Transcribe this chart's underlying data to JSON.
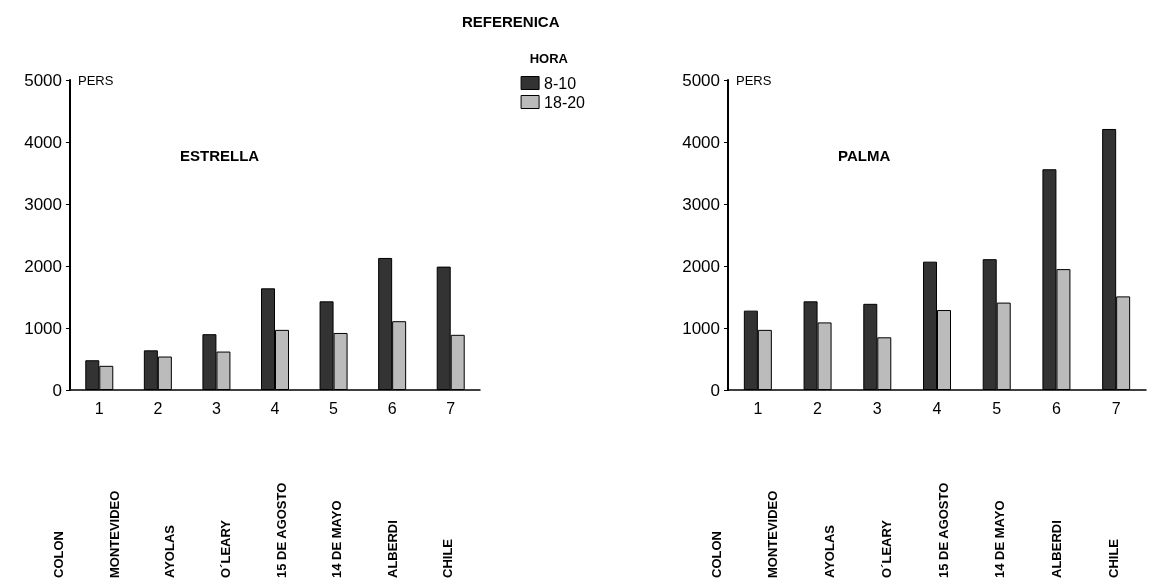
{
  "chart_data": [
    {
      "type": "bar",
      "title": "ESTRELLA",
      "subtitle": "REFERENICA",
      "ylabel": "PERS",
      "legend_title": "HORA",
      "legend": "top right",
      "grid": false,
      "categories": [
        "1",
        "2",
        "3",
        "4",
        "5",
        "6",
        "7"
      ],
      "series": [
        {
          "name": "8-10",
          "color": "#333333",
          "values": [
            480,
            640,
            900,
            1640,
            1430,
            2130,
            1990
          ]
        },
        {
          "name": "18-20",
          "color": "#bbbbbb",
          "values": [
            390,
            540,
            620,
            970,
            920,
            1110,
            890
          ]
        }
      ],
      "ylim": [
        0,
        5000
      ],
      "yticks": [
        0,
        1000,
        2000,
        3000,
        4000,
        5000
      ],
      "annotations": [
        "COLON",
        "MONTEVIDEO",
        "AYOLAS",
        "O´LEARY",
        "15 DE AGOSTO",
        "14 DE MAYO",
        "ALBERDI",
        "CHILE"
      ]
    },
    {
      "type": "bar",
      "title": "PALMA",
      "ylabel": "PERS",
      "grid": false,
      "categories": [
        "1",
        "2",
        "3",
        "4",
        "5",
        "6",
        "7"
      ],
      "series": [
        {
          "color": "#333333",
          "values": [
            1280,
            1430,
            1390,
            2070,
            2110,
            3560,
            4210
          ]
        },
        {
          "color": "#bbbbbb",
          "values": [
            970,
            1090,
            850,
            1290,
            1410,
            1950,
            1510
          ]
        }
      ],
      "ylim": [
        0,
        5000
      ],
      "yticks": [
        0,
        1000,
        2000,
        3000,
        4000,
        5000
      ],
      "annotations": [
        "COLON",
        "MONTEVIDEO",
        "AYOLAS",
        "O´LEARY",
        "15 DE AGOSTO",
        "14 DE MAYO",
        "ALBERDI",
        "CHILE"
      ]
    }
  ]
}
